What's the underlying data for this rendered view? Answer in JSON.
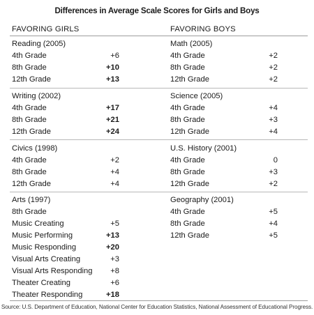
{
  "title": "Differences in Average Scale Scores for Girls and Boys",
  "left_header": "FAVORING GIRLS",
  "right_header": "FAVORING BOYS",
  "left": [
    {
      "subject": "Reading (2005)",
      "rows": [
        {
          "label": "4th Grade",
          "value": "+6",
          "bold": false
        },
        {
          "label": "8th Grade",
          "value": "+10",
          "bold": true
        },
        {
          "label": "12th Grade",
          "value": "+13",
          "bold": true
        }
      ]
    },
    {
      "subject": "Writing (2002)",
      "rows": [
        {
          "label": "4th Grade",
          "value": "+17",
          "bold": true
        },
        {
          "label": "8th Grade",
          "value": "+21",
          "bold": true
        },
        {
          "label": "12th Grade",
          "value": "+24",
          "bold": true
        }
      ]
    },
    {
      "subject": "Civics (1998)",
      "rows": [
        {
          "label": "4th Grade",
          "value": "+2",
          "bold": false
        },
        {
          "label": "8th Grade",
          "value": "+4",
          "bold": false
        },
        {
          "label": "12th Grade",
          "value": "+4",
          "bold": false
        }
      ]
    },
    {
      "subject": "Arts (1997)",
      "rows": [
        {
          "label": "8th Grade",
          "value": "",
          "bold": false
        },
        {
          "label": "Music Creating",
          "value": "+5",
          "bold": false
        },
        {
          "label": "Music Performing",
          "value": "+13",
          "bold": true
        },
        {
          "label": "Music Responding",
          "value": "+20",
          "bold": true
        },
        {
          "label": "Visual Arts Creating",
          "value": "+3",
          "bold": false
        },
        {
          "label": "Visual Arts Responding",
          "value": "+8",
          "bold": false
        },
        {
          "label": "Theater Creating",
          "value": "+6",
          "bold": false
        },
        {
          "label": "Theater Responding",
          "value": "+18",
          "bold": true
        }
      ]
    }
  ],
  "right": [
    {
      "subject": "Math (2005)",
      "rows": [
        {
          "label": "4th Grade",
          "value": "+2",
          "bold": false
        },
        {
          "label": "8th Grade",
          "value": "+2",
          "bold": false
        },
        {
          "label": "12th Grade",
          "value": "+2",
          "bold": false
        }
      ]
    },
    {
      "subject": "Science (2005)",
      "rows": [
        {
          "label": "4th Grade",
          "value": "+4",
          "bold": false
        },
        {
          "label": "8th Grade",
          "value": "+3",
          "bold": false
        },
        {
          "label": "12th Grade",
          "value": "+4",
          "bold": false
        }
      ]
    },
    {
      "subject": "U.S. History (2001)",
      "rows": [
        {
          "label": "4th Grade",
          "value": "0",
          "bold": false
        },
        {
          "label": "8th Grade",
          "value": "+3",
          "bold": false
        },
        {
          "label": "12th Grade",
          "value": "+2",
          "bold": false
        }
      ]
    },
    {
      "subject": "Geography (2001)",
      "rows": [
        {
          "label": "4th Grade",
          "value": "+5",
          "bold": false
        },
        {
          "label": "8th Grade",
          "value": "+4",
          "bold": false
        },
        {
          "label": "12th Grade",
          "value": "+5",
          "bold": false
        }
      ]
    }
  ],
  "source": "Source: U.S. Department of Education, National Center for Education Statistics, National Assessment of Educational Progress."
}
